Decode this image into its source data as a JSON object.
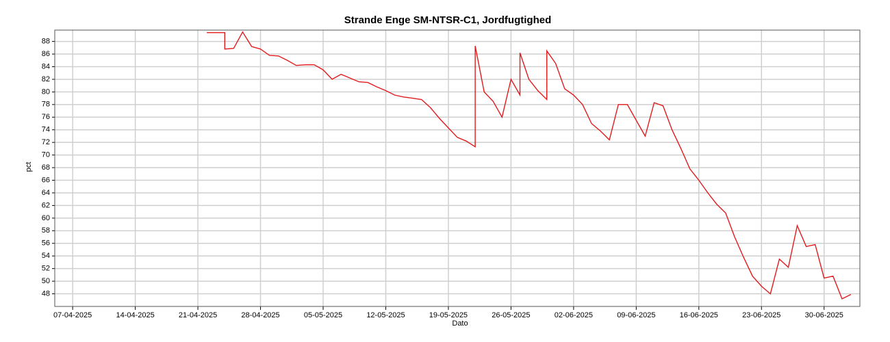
{
  "chart_data": {
    "type": "line",
    "title": "Strande Enge SM-NTSR-C1, Jordfugtighed",
    "y_label": "pct",
    "x_label": "Dato",
    "color": "#e31a1c",
    "grid": true,
    "xlim": [
      "05-04-2025",
      "04-07-2025"
    ],
    "ylim": [
      46,
      89.8
    ],
    "xticks": [
      "07-04-2025",
      "14-04-2025",
      "21-04-2025",
      "28-04-2025",
      "05-05-2025",
      "12-05-2025",
      "19-05-2025",
      "26-05-2025",
      "02-06-2025",
      "09-06-2025",
      "16-06-2025",
      "23-06-2025",
      "30-06-2025"
    ],
    "yticks": [
      48,
      50,
      52,
      54,
      56,
      58,
      60,
      62,
      64,
      66,
      68,
      70,
      72,
      74,
      76,
      78,
      80,
      82,
      84,
      86,
      88
    ],
    "x": [
      "22-04-2025",
      "23-04-2025",
      "24-04-2025",
      "24-04-2025",
      "25-04-2025",
      "26-04-2025",
      "27-04-2025",
      "28-04-2025",
      "29-04-2025",
      "30-04-2025",
      "01-05-2025",
      "02-05-2025",
      "03-05-2025",
      "04-05-2025",
      "05-05-2025",
      "06-05-2025",
      "07-05-2025",
      "08-05-2025",
      "09-05-2025",
      "10-05-2025",
      "11-05-2025",
      "12-05-2025",
      "13-05-2025",
      "14-05-2025",
      "15-05-2025",
      "16-05-2025",
      "17-05-2025",
      "18-05-2025",
      "19-05-2025",
      "20-05-2025",
      "21-05-2025",
      "22-05-2025",
      "22-05-2025",
      "23-05-2025",
      "24-05-2025",
      "25-05-2025",
      "26-05-2025",
      "27-05-2025",
      "27-05-2025",
      "28-05-2025",
      "29-05-2025",
      "30-05-2025",
      "30-05-2025",
      "31-05-2025",
      "01-06-2025",
      "02-06-2025",
      "03-06-2025",
      "04-06-2025",
      "05-06-2025",
      "06-06-2025",
      "07-06-2025",
      "08-06-2025",
      "09-06-2025",
      "10-06-2025",
      "11-06-2025",
      "12-06-2025",
      "13-06-2025",
      "14-06-2025",
      "15-06-2025",
      "16-06-2025",
      "17-06-2025",
      "18-06-2025",
      "19-06-2025",
      "20-06-2025",
      "21-06-2025",
      "22-06-2025",
      "23-06-2025",
      "24-06-2025",
      "25-06-2025",
      "26-06-2025",
      "27-06-2025",
      "28-06-2025",
      "29-06-2025",
      "30-06-2025",
      "01-07-2025",
      "02-07-2025",
      "03-07-2025"
    ],
    "values": [
      89.4,
      89.4,
      89.4,
      86.8,
      86.9,
      89.5,
      87.2,
      86.8,
      85.8,
      85.7,
      85.0,
      84.2,
      84.3,
      84.3,
      83.5,
      82.0,
      82.8,
      82.2,
      81.6,
      81.5,
      80.8,
      80.2,
      79.5,
      79.2,
      79.0,
      78.8,
      77.5,
      75.8,
      74.3,
      72.8,
      72.2,
      71.3,
      87.3,
      80.0,
      78.5,
      76.0,
      82.0,
      79.5,
      86.2,
      82.0,
      80.2,
      78.8,
      86.5,
      84.5,
      80.5,
      79.5,
      78.0,
      75.0,
      73.8,
      72.4,
      78.0,
      78.0,
      75.5,
      73.0,
      78.3,
      77.8,
      74.0,
      71.0,
      67.8,
      66.0,
      64.0,
      62.2,
      60.8,
      57.0,
      53.8,
      50.8,
      49.2,
      48.0,
      53.5,
      52.2,
      58.8,
      55.5,
      55.8,
      50.5,
      50.8,
      47.2,
      47.9
    ]
  }
}
